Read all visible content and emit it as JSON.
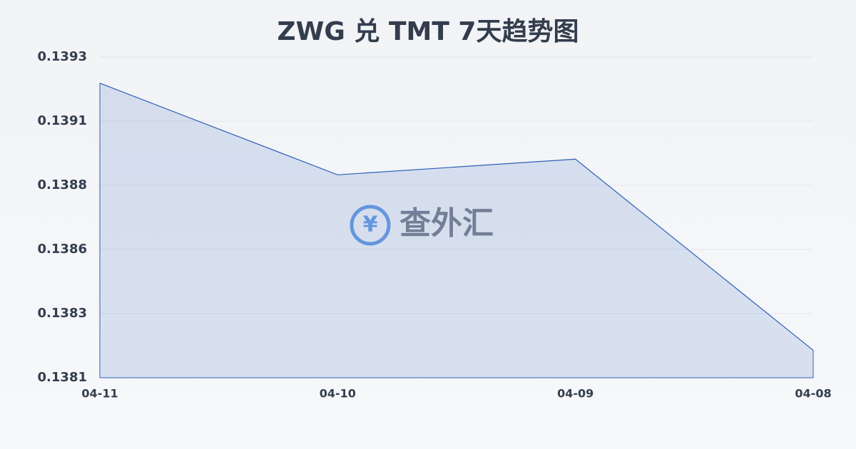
{
  "chart_data": {
    "type": "area",
    "title": "ZWG 兑 TMT 7天趋势图",
    "watermark": "查外汇",
    "categories": [
      "04-11",
      "04-10",
      "04-09",
      "04-08"
    ],
    "series": [
      {
        "name": "ZWG/TMT",
        "color": "#2f5fb8",
        "values": [
          0.1392,
          0.13885,
          0.13891,
          0.13818
        ]
      }
    ],
    "ylim": [
      0.138075,
      0.1393
    ],
    "yticks": [
      {
        "value": 0.1393,
        "label": "0.1393"
      },
      {
        "value": 0.139055,
        "label": "0.1391"
      },
      {
        "value": 0.13881,
        "label": "0.1388"
      },
      {
        "value": 0.138565,
        "label": "0.1386"
      },
      {
        "value": 0.13832,
        "label": "0.1383"
      },
      {
        "value": 0.138075,
        "label": "0.1381"
      }
    ],
    "grid": true
  }
}
